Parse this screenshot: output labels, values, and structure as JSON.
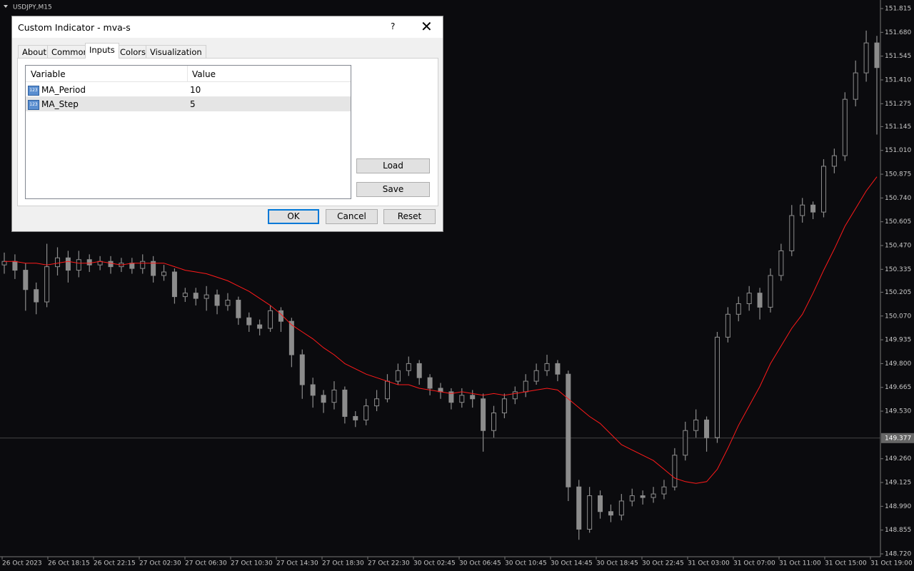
{
  "window": {
    "symbol": "USDJPY,M15"
  },
  "chart_data": {
    "type": "candlestick",
    "ylim": [
      148.72,
      151.815
    ],
    "yticks": [
      151.815,
      {
        "value": 151.68,
        "label": "151.680"
      },
      151.545,
      {
        "value": 151.41,
        "label": "151.410"
      },
      151.275,
      151.145,
      {
        "value": 151.01,
        "label": "151.010"
      },
      150.875,
      {
        "value": 150.74,
        "label": "150.740"
      },
      150.605,
      {
        "value": 150.47,
        "label": "150.470"
      },
      150.335,
      150.205,
      {
        "value": 150.07,
        "label": "150.070"
      },
      149.935,
      {
        "value": 149.8,
        "label": "149.800"
      },
      149.665,
      {
        "value": 149.53,
        "label": "149.530"
      },
      {
        "value": 149.26,
        "label": "149.260"
      },
      149.125,
      {
        "value": 148.99,
        "label": "148.990"
      },
      148.855,
      {
        "value": 148.72,
        "label": "148.720"
      }
    ],
    "current_price": 149.377,
    "x_labels": [
      "26 Oct 2023",
      "26 Oct 18:15",
      "26 Oct 22:15",
      "27 Oct 02:30",
      "27 Oct 06:30",
      "27 Oct 10:30",
      "27 Oct 14:30",
      "27 Oct 18:30",
      "27 Oct 22:30",
      "30 Oct 02:45",
      "30 Oct 06:45",
      "30 Oct 10:45",
      "30 Oct 14:45",
      "30 Oct 18:45",
      "30 Oct 22:45",
      "31 Oct 03:00",
      "31 Oct 07:00",
      "31 Oct 11:00",
      "31 Oct 15:00",
      "31 Oct 19:00"
    ],
    "candle_color": "#8c8c8c",
    "open": [
      150.36,
      150.38,
      150.33,
      150.22,
      150.15,
      150.35,
      150.4,
      150.33,
      150.39,
      150.36,
      150.38,
      150.35,
      150.37,
      150.34,
      150.38,
      150.3,
      150.32,
      150.18,
      150.2,
      150.17,
      150.19,
      150.13,
      150.16,
      150.06,
      150.02,
      150.0,
      150.1,
      150.04,
      149.85,
      149.68,
      149.62,
      149.58,
      149.65,
      149.5,
      149.48,
      149.56,
      149.6,
      149.7,
      149.76,
      149.8,
      149.72,
      149.66,
      149.64,
      149.58,
      149.62,
      149.6,
      149.42,
      149.52,
      149.6,
      149.64,
      149.7,
      149.76,
      149.8,
      149.74,
      149.1,
      148.86,
      149.05,
      148.96,
      148.94,
      149.02,
      149.05,
      149.04,
      149.06,
      149.1,
      149.28,
      149.42,
      149.48,
      149.38,
      149.95,
      150.08,
      150.14,
      150.2,
      150.12,
      150.3,
      150.44,
      150.64,
      150.7,
      150.66,
      150.92,
      150.98,
      151.3,
      151.45,
      151.62
    ],
    "high": [
      150.43,
      150.42,
      150.37,
      150.26,
      150.48,
      150.46,
      150.44,
      150.44,
      150.42,
      150.41,
      150.41,
      150.4,
      150.4,
      150.42,
      150.41,
      150.36,
      150.34,
      150.23,
      150.23,
      150.24,
      150.22,
      150.2,
      150.18,
      150.09,
      150.05,
      150.13,
      150.12,
      150.06,
      149.88,
      149.72,
      149.65,
      149.7,
      149.67,
      149.53,
      149.6,
      149.65,
      149.74,
      149.8,
      149.84,
      149.82,
      149.74,
      149.69,
      149.66,
      149.66,
      149.65,
      149.63,
      149.56,
      149.63,
      149.67,
      149.74,
      149.8,
      149.85,
      149.82,
      149.76,
      149.14,
      149.1,
      149.08,
      149.0,
      149.06,
      149.09,
      149.08,
      149.1,
      149.14,
      149.32,
      149.47,
      149.54,
      149.5,
      149.98,
      150.12,
      150.18,
      150.24,
      150.23,
      150.34,
      150.48,
      150.7,
      150.74,
      150.72,
      150.96,
      151.02,
      151.34,
      151.52,
      151.69,
      151.66
    ],
    "low": [
      150.31,
      150.28,
      150.1,
      150.08,
      150.12,
      150.3,
      150.26,
      150.29,
      150.32,
      150.33,
      150.31,
      150.32,
      150.31,
      150.31,
      150.26,
      150.27,
      150.14,
      150.15,
      150.13,
      150.1,
      150.08,
      150.1,
      150.02,
      149.98,
      149.96,
      149.98,
      149.98,
      149.78,
      149.6,
      149.55,
      149.52,
      149.54,
      149.46,
      149.44,
      149.45,
      149.53,
      149.58,
      149.68,
      149.73,
      149.68,
      149.62,
      149.6,
      149.54,
      149.55,
      149.55,
      149.3,
      149.38,
      149.49,
      149.57,
      149.61,
      149.68,
      149.73,
      149.7,
      149.02,
      148.8,
      148.84,
      148.92,
      148.9,
      148.91,
      148.99,
      149.0,
      149.01,
      149.03,
      149.08,
      149.25,
      149.38,
      149.3,
      149.35,
      149.92,
      150.04,
      150.1,
      150.05,
      150.09,
      150.27,
      150.41,
      150.6,
      150.62,
      150.63,
      150.88,
      150.95,
      151.26,
      151.4,
      151.1
    ],
    "close": [
      150.38,
      150.33,
      150.22,
      150.15,
      150.35,
      150.4,
      150.33,
      150.39,
      150.36,
      150.38,
      150.35,
      150.37,
      150.34,
      150.38,
      150.3,
      150.32,
      150.18,
      150.2,
      150.17,
      150.19,
      150.13,
      150.16,
      150.06,
      150.02,
      150.0,
      150.1,
      150.04,
      149.85,
      149.68,
      149.62,
      149.58,
      149.65,
      149.5,
      149.48,
      149.56,
      149.6,
      149.7,
      149.76,
      149.8,
      149.72,
      149.66,
      149.64,
      149.58,
      149.62,
      149.6,
      149.42,
      149.52,
      149.6,
      149.64,
      149.7,
      149.76,
      149.8,
      149.74,
      149.1,
      148.86,
      149.05,
      148.96,
      148.94,
      149.02,
      149.05,
      149.04,
      149.06,
      149.1,
      149.28,
      149.42,
      149.48,
      149.38,
      149.95,
      150.08,
      150.14,
      150.2,
      150.12,
      150.3,
      150.44,
      150.64,
      150.7,
      150.66,
      150.92,
      150.98,
      151.3,
      151.45,
      151.62,
      151.48
    ],
    "ma": {
      "color": "#ff1a1a",
      "values": [
        150.38,
        150.38,
        150.37,
        150.37,
        150.36,
        150.37,
        150.38,
        150.37,
        150.37,
        150.38,
        150.37,
        150.36,
        150.37,
        150.37,
        150.37,
        150.37,
        150.35,
        150.33,
        150.32,
        150.31,
        150.29,
        150.27,
        150.24,
        150.21,
        150.17,
        150.13,
        150.08,
        150.02,
        149.98,
        149.94,
        149.89,
        149.85,
        149.8,
        149.77,
        149.74,
        149.72,
        149.7,
        149.68,
        149.68,
        149.66,
        149.65,
        149.64,
        149.63,
        149.64,
        149.63,
        149.62,
        149.63,
        149.62,
        149.63,
        149.64,
        149.65,
        149.66,
        149.65,
        149.6,
        149.55,
        149.5,
        149.46,
        149.4,
        149.34,
        149.31,
        149.28,
        149.25,
        149.2,
        149.15,
        149.13,
        149.12,
        149.13,
        149.2,
        149.32,
        149.45,
        149.56,
        149.67,
        149.8,
        149.9,
        150.0,
        150.08,
        150.2,
        150.33,
        150.45,
        150.58,
        150.68,
        150.78,
        150.86
      ]
    }
  },
  "dialog": {
    "title": "Custom Indicator - mva-s",
    "help": "?",
    "tabs": [
      "About",
      "Common",
      "Inputs",
      "Colors",
      "Visualization"
    ],
    "table": {
      "headers": [
        "Variable",
        "Value"
      ],
      "rows": [
        [
          "MA_Period",
          10
        ],
        [
          "MA_Step",
          5
        ]
      ]
    },
    "buttons": {
      "load": "Load",
      "save": "Save",
      "ok": "OK",
      "cancel": "Cancel",
      "reset": "Reset"
    }
  }
}
